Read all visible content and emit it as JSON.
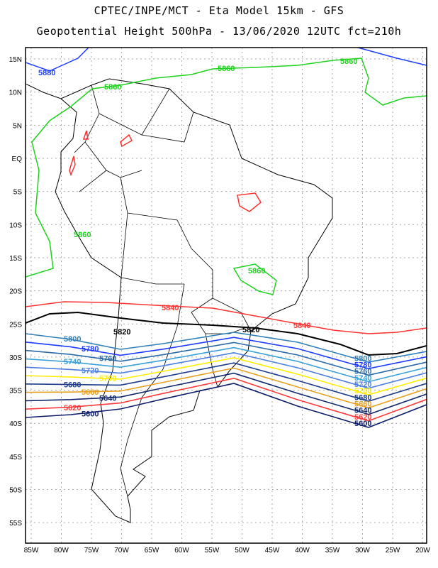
{
  "header": {
    "line1": "CPTEC/INPE/MCT -  Eta Model 15km - GFS",
    "line2": "Geopotential Height 500hPa - 13/06/2020 12UTC fct=210h"
  },
  "axes": {
    "lat_labels": [
      "15N",
      "10N",
      "5N",
      "EQ",
      "5S",
      "10S",
      "15S",
      "20S",
      "25S",
      "30S",
      "35S",
      "40S",
      "45S",
      "50S",
      "55S"
    ],
    "lon_labels": [
      "85W",
      "80W",
      "75W",
      "70W",
      "65W",
      "60W",
      "55W",
      "50W",
      "45W",
      "40W",
      "35W",
      "30W",
      "25W",
      "20W"
    ]
  },
  "contours": {
    "c5880": {
      "label": "5880",
      "color": "#1f3fff"
    },
    "c5860": {
      "label": "5860",
      "color": "#1ed21e"
    },
    "c5840": {
      "label": "5840",
      "color": "#ff3030"
    },
    "c5820": {
      "label": "5820",
      "color": "#000000"
    },
    "bands": [
      {
        "label": "5800",
        "color": "#2f7fb8"
      },
      {
        "label": "5780",
        "color": "#1e3cff"
      },
      {
        "label": "5760",
        "color": "#2a6aa8"
      },
      {
        "label": "5740",
        "color": "#3aa0d8"
      },
      {
        "label": "5720",
        "color": "#4b7fe0"
      },
      {
        "label": "5700",
        "color": "#ffee00"
      },
      {
        "label": "5680",
        "color": "#1c3c8c"
      },
      {
        "label": "5660",
        "color": "#e8a020"
      },
      {
        "label": "5640",
        "color": "#10286e"
      },
      {
        "label": "5620",
        "color": "#ff3838"
      },
      {
        "label": "5600",
        "color": "#0c1c6a"
      }
    ]
  }
}
